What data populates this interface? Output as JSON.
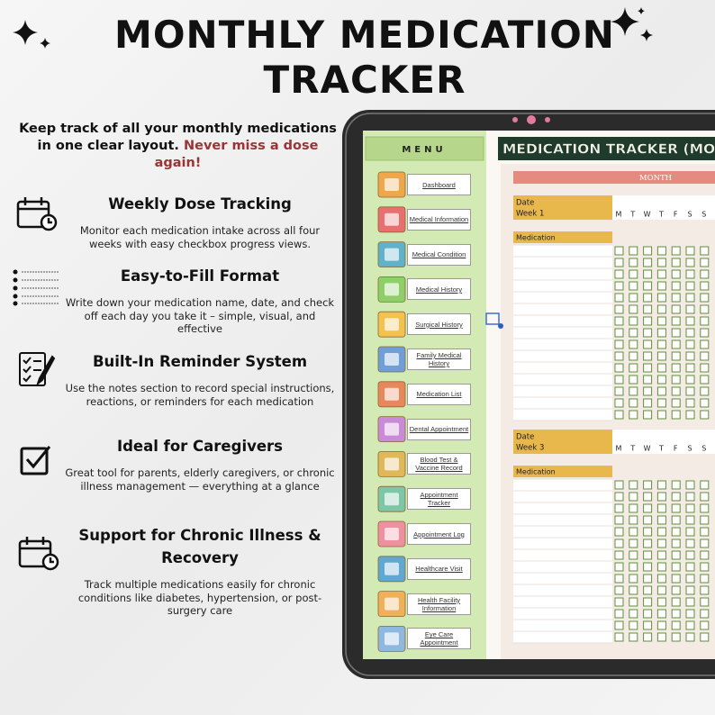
{
  "header": {
    "title": "MONTHLY MEDICATION TRACKER"
  },
  "intro": {
    "text": "Keep track of all your monthly medications in one clear layout.",
    "highlight": "Never miss a dose again!"
  },
  "features": [
    {
      "heading": "Weekly Dose Tracking",
      "description": "Monitor each medication intake across all four weeks with easy checkbox progress views."
    },
    {
      "heading": "Easy-to-Fill Format",
      "description": "Write down your medication name, date, and check off each day you take it – simple, visual, and effective"
    },
    {
      "heading": "Built-In Reminder System",
      "description": "Use the notes section to record special instructions, reactions, or reminders for each medication"
    },
    {
      "heading": "Ideal for Caregivers",
      "description": "Great tool for parents, elderly caregivers, or chronic illness management — everything at a glance"
    },
    {
      "heading": "Support for Chronic Illness & Recovery",
      "description": "Track multiple medications easily for chronic conditions like diabetes, hypertension, or post-surgery care"
    }
  ],
  "tablet": {
    "menu_title": "MENU",
    "menu_items": [
      "Dashboard",
      "Medical Information",
      "Medical Condition",
      "Medical History",
      "Surgical History",
      "Family Medical History",
      "Medication List",
      "Dental Appointment",
      "Blood Test & Vaccine Record",
      "Appointment Tracker",
      "Appointment Log",
      "Healthcare Visit",
      "Health Facility Information",
      "Eye Care Appointment"
    ],
    "sheet_title": "MEDICATION TRACKER (MON",
    "month_label": "MONTH",
    "blocks": [
      {
        "date_label": "Date",
        "week_label": "Week 1",
        "days": [
          "M",
          "T",
          "W",
          "T",
          "F",
          "S",
          "S"
        ],
        "medication_label": "Medication"
      },
      {
        "date_label": "Date",
        "week_label": "Week 3",
        "days": [
          "M",
          "T",
          "W",
          "T",
          "F",
          "S",
          "S"
        ],
        "medication_label": "Medication"
      }
    ]
  }
}
